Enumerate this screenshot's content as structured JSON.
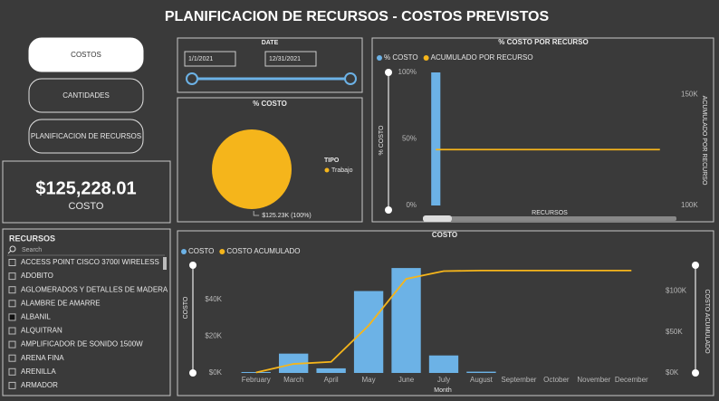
{
  "header": {
    "title": "PLANIFICACION DE RECURSOS - COSTOS PREVISTOS"
  },
  "nav": [
    "COSTOS",
    "CANTIDADES",
    "PLANIFICACION DE RECURSOS"
  ],
  "date_slicer": {
    "title": "DATE",
    "start": "1/1/2021",
    "end": "12/31/2021"
  },
  "kpi": {
    "value": "$125,228.01",
    "label": "COSTO"
  },
  "resources": {
    "title": "RECURSOS",
    "search": "Search",
    "items": [
      "ACCESS POINT CISCO 3700I WIRELESS",
      "ADOBITO",
      "AGLOMERADOS Y DETALLES DE MADERA",
      "ALAMBRE DE AMARRE",
      "ALBANIL",
      "ALQUITRAN",
      "AMPLIFICADOR DE SONIDO 1500W",
      "ARENA FINA",
      "ARENILLA",
      "ARMADOR"
    ]
  },
  "chart_data": [
    {
      "type": "pie",
      "title": "% COSTO",
      "legend_title": "TIPO",
      "categories": [
        "Trabajo"
      ],
      "values": [
        125.23
      ],
      "value_labels": [
        "$125.23K (100%)"
      ],
      "colors": [
        "#f5b51b"
      ]
    },
    {
      "type": "combo",
      "title": "% COSTO POR RECURSO",
      "x_label": "RECURSOS",
      "y_label": "% COSTO",
      "y2_label": "ACUMULADO POR RECURSO",
      "categories": [
        null,
        null,
        null,
        null,
        null,
        null,
        null,
        null,
        null,
        null,
        null,
        null
      ],
      "series": [
        {
          "name": "% COSTO",
          "type": "bar",
          "color": "#6cb2e6",
          "values": [
            100,
            0,
            0,
            0,
            0,
            0,
            0,
            0,
            0,
            0,
            0,
            0
          ]
        },
        {
          "name": "ACUMULADO POR RECURSO",
          "type": "line",
          "axis": "y2",
          "color": "#f5b51b",
          "values": [
            125.2,
            125.2,
            125.2,
            125.2,
            125.2,
            125.2,
            125.2,
            125.2,
            125.2,
            125.2,
            125.2,
            125.2
          ]
        }
      ],
      "ylim": [
        0,
        100
      ],
      "yticks": [
        {
          "value": 0,
          "label": "0%"
        },
        {
          "value": 50,
          "label": "50%"
        },
        {
          "value": 100,
          "label": "100%"
        }
      ],
      "y2lim": [
        100,
        160
      ],
      "y2ticks": [
        {
          "value": 100,
          "label": "100K"
        },
        {
          "value": 150,
          "label": "150K"
        }
      ]
    },
    {
      "type": "combo",
      "title": "COSTO",
      "x_label": "Month",
      "y_label": "COSTO",
      "y2_label": "COSTO ACUMULADO",
      "categories": [
        "February",
        "March",
        "April",
        "May",
        "June",
        "July",
        "August",
        "September",
        "October",
        "November",
        "December"
      ],
      "series": [
        {
          "name": "COSTO",
          "type": "bar",
          "color": "#6cb2e6",
          "values": [
            0.5,
            10.5,
            2.5,
            44.5,
            57,
            9.5,
            0.7,
            0,
            0,
            0,
            0
          ]
        },
        {
          "name": "COSTO ACUMULADO",
          "type": "line",
          "axis": "y2",
          "color": "#f5b51b",
          "values": [
            0.5,
            11,
            13.5,
            58,
            115,
            124.5,
            125.2,
            125.2,
            125.2,
            125.2,
            125.2
          ]
        }
      ],
      "ylim": [
        0,
        60
      ],
      "yticks": [
        {
          "value": 0,
          "label": "$0K"
        },
        {
          "value": 20,
          "label": "$20K"
        },
        {
          "value": 40,
          "label": "$40K"
        }
      ],
      "y2lim": [
        0,
        135
      ],
      "y2ticks": [
        {
          "value": 0,
          "label": "$0K"
        },
        {
          "value": 50,
          "label": "$50K"
        },
        {
          "value": 100,
          "label": "$100K"
        }
      ]
    }
  ]
}
